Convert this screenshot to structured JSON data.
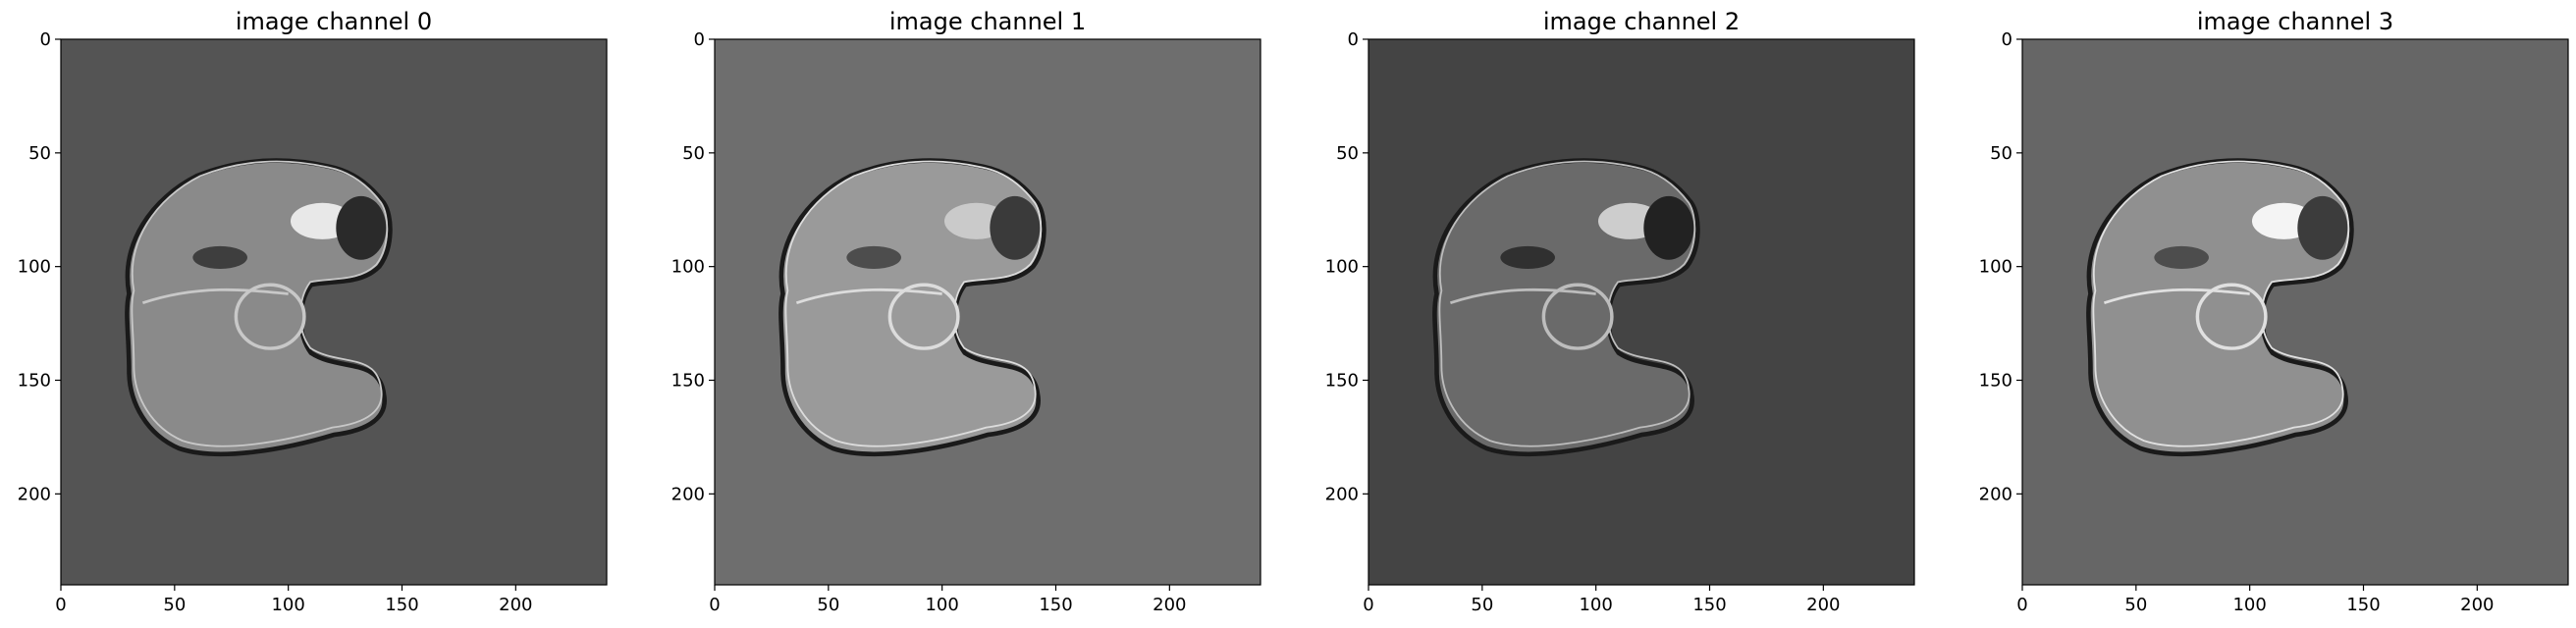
{
  "chart_data": [
    {
      "type": "image",
      "title": "image channel 0",
      "xticks": [
        0,
        50,
        100,
        150,
        200
      ],
      "yticks": [
        0,
        50,
        100,
        150,
        200
      ],
      "xlim": [
        0,
        240
      ],
      "ylim": [
        240,
        0
      ],
      "background_color": "#545454",
      "colormap": "gray"
    },
    {
      "type": "image",
      "title": "image channel 1",
      "xticks": [
        0,
        50,
        100,
        150,
        200
      ],
      "yticks": [
        0,
        50,
        100,
        150,
        200
      ],
      "xlim": [
        0,
        240
      ],
      "ylim": [
        240,
        0
      ],
      "background_color": "#6e6e6e",
      "colormap": "gray"
    },
    {
      "type": "image",
      "title": "image channel 2",
      "xticks": [
        0,
        50,
        100,
        150,
        200
      ],
      "yticks": [
        0,
        50,
        100,
        150,
        200
      ],
      "xlim": [
        0,
        240
      ],
      "ylim": [
        240,
        0
      ],
      "background_color": "#444444",
      "colormap": "gray"
    },
    {
      "type": "image",
      "title": "image channel 3",
      "xticks": [
        0,
        50,
        100,
        150,
        200
      ],
      "yticks": [
        0,
        50,
        100,
        150,
        200
      ],
      "xlim": [
        0,
        240
      ],
      "ylim": [
        240,
        0
      ],
      "background_color": "#666666",
      "colormap": "gray"
    }
  ]
}
